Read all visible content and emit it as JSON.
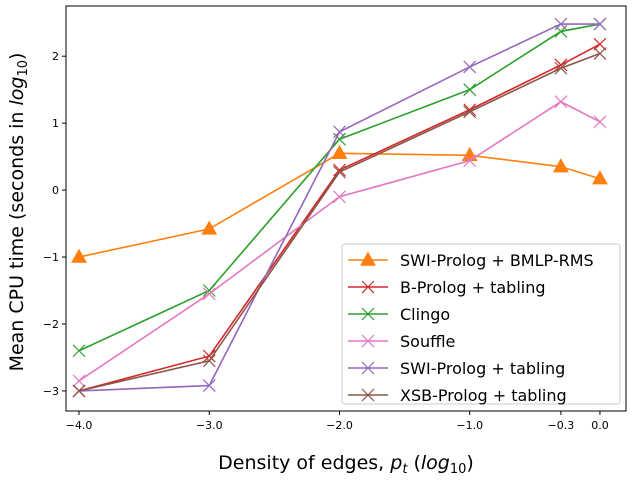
{
  "chart_data": {
    "type": "line",
    "xlabel": "Density of edges, p_t (log10)",
    "ylabel": "Mean CPU time (seconds in log10)",
    "xlabel_parts": {
      "pre": "Density of edges, ",
      "var": "p",
      "sub": "t",
      "mid": " (",
      "log": "log",
      "logsub": "10",
      "post": ")"
    },
    "ylabel_parts": {
      "pre": "Mean CPU time (seconds in ",
      "log": "log",
      "logsub": "10",
      "post": ")"
    },
    "xlim": [
      -4.1,
      0.2
    ],
    "ylim": [
      -3.3,
      2.75
    ],
    "xticks": [
      -4.0,
      -3.0,
      -2.0,
      -1.0,
      -0.3,
      0.0
    ],
    "xtick_labels": [
      "−4.0",
      "−3.0",
      "−2.0",
      "−1.0",
      "−0.3",
      "0.0"
    ],
    "yticks": [
      -3,
      -2,
      -1,
      0,
      1,
      2
    ],
    "ytick_labels": [
      "−3",
      "−2",
      "−1",
      "0",
      "1",
      "2"
    ],
    "x": [
      -4.0,
      -3.0,
      -2.0,
      -1.0,
      -0.3,
      0.0
    ],
    "grid": false,
    "legend_position": "lower-right",
    "series": [
      {
        "name": "SWI-Prolog + BMLP-RMS",
        "color": "#ff7f0e",
        "marker": "triangle",
        "values": [
          -1.0,
          -0.58,
          0.55,
          0.52,
          0.35,
          0.17
        ]
      },
      {
        "name": "B-Prolog + tabling",
        "color": "#d62728",
        "marker": "x",
        "values": [
          -3.0,
          -2.48,
          0.3,
          1.2,
          1.87,
          2.18
        ]
      },
      {
        "name": "Clingo",
        "color": "#2ca02c",
        "marker": "x",
        "values": [
          -2.4,
          -1.5,
          0.76,
          1.5,
          2.37,
          2.48
        ]
      },
      {
        "name": "Souffle",
        "color": "#e377c2",
        "marker": "x",
        "values": [
          -2.85,
          -1.55,
          -0.1,
          0.44,
          1.32,
          1.02
        ]
      },
      {
        "name": "SWI-Prolog + tabling",
        "color": "#9467bd",
        "marker": "x",
        "values": [
          -3.0,
          -2.92,
          0.87,
          1.84,
          2.48,
          2.48
        ]
      },
      {
        "name": "XSB-Prolog + tabling",
        "color": "#8c564b",
        "marker": "x",
        "values": [
          -3.0,
          -2.55,
          0.27,
          1.17,
          1.82,
          2.04
        ]
      }
    ]
  }
}
